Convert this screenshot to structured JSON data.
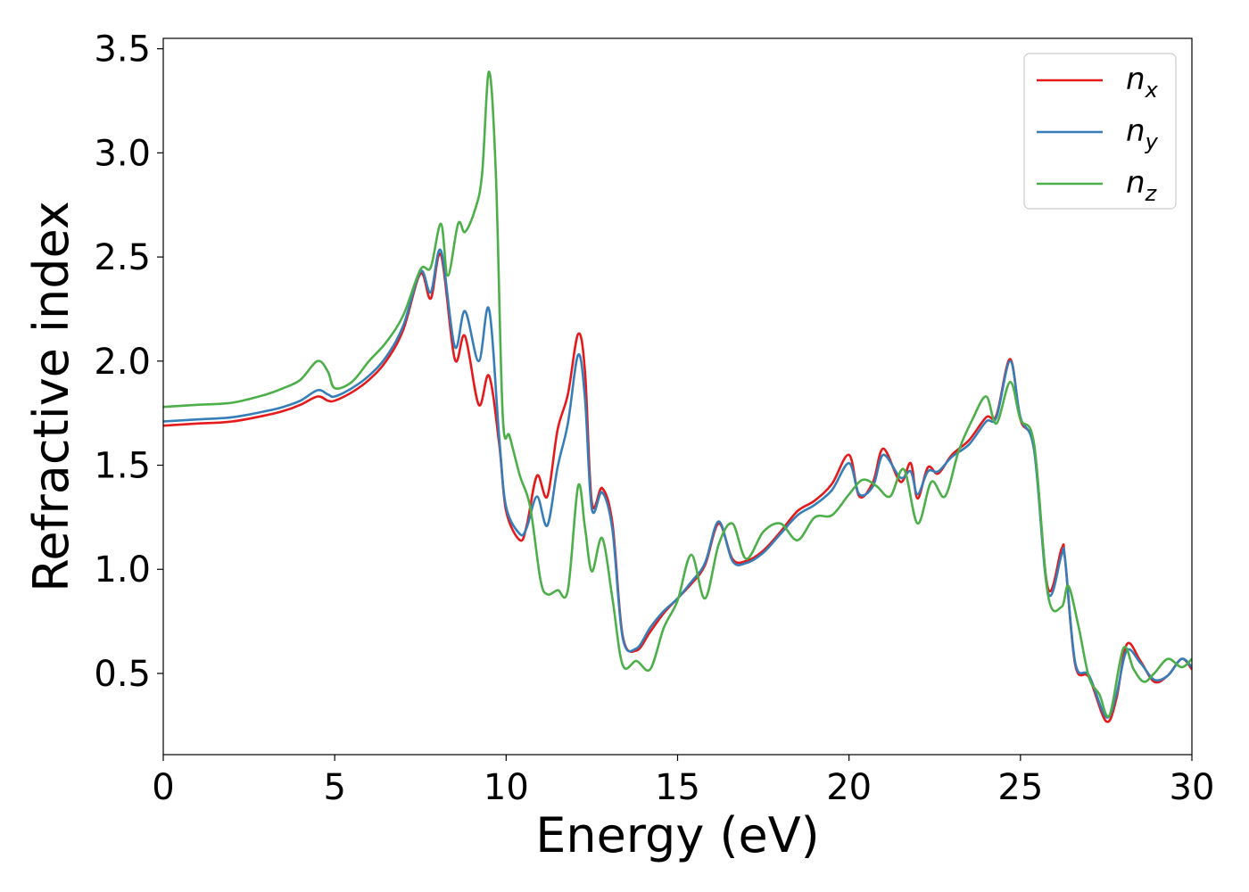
{
  "chart_data": {
    "type": "line",
    "xlabel": "Energy (eV)",
    "ylabel": "Refractive index",
    "xlim": [
      0,
      30
    ],
    "ylim": [
      0.11,
      3.55
    ],
    "xticks": [
      0,
      5,
      10,
      15,
      20,
      25,
      30
    ],
    "yticks": [
      0.5,
      1.0,
      1.5,
      2.0,
      2.5,
      3.0,
      3.5
    ],
    "xtick_labels": [
      "0",
      "5",
      "10",
      "15",
      "20",
      "25",
      "30"
    ],
    "ytick_labels": [
      "0.5",
      "1.0",
      "1.5",
      "2.0",
      "2.5",
      "3.0",
      "3.5"
    ],
    "grid": false,
    "legend_position": "top-right",
    "series": [
      {
        "name": "n_x",
        "label_base": "n",
        "label_sub": "x",
        "color": "#e41a1c",
        "x": [
          0,
          1,
          2,
          3,
          3.5,
          4,
          4.5,
          4.8,
          5,
          5.5,
          6,
          6.5,
          7,
          7.5,
          7.8,
          8.1,
          8.5,
          8.8,
          9.2,
          9.5,
          9.8,
          10,
          10.4,
          10.6,
          10.9,
          11.2,
          11.5,
          11.8,
          12.1,
          12.3,
          12.5,
          12.8,
          13.1,
          13.4,
          13.8,
          14.2,
          14.6,
          15,
          15.4,
          15.8,
          16.2,
          16.6,
          17,
          17.5,
          18,
          18.5,
          19,
          19.5,
          20,
          20.3,
          20.7,
          21,
          21.5,
          21.8,
          22,
          22.3,
          22.6,
          23,
          23.5,
          24,
          24.3,
          24.7,
          25,
          25.4,
          25.8,
          26.2,
          26.3,
          26.6,
          27,
          27.5,
          27.8,
          28.1,
          28.5,
          28.9,
          29.3,
          29.7,
          30
        ],
        "y": [
          1.69,
          1.7,
          1.71,
          1.74,
          1.76,
          1.79,
          1.83,
          1.81,
          1.81,
          1.85,
          1.91,
          2.0,
          2.15,
          2.42,
          2.3,
          2.51,
          2.01,
          2.12,
          1.79,
          1.93,
          1.6,
          1.28,
          1.14,
          1.21,
          1.45,
          1.35,
          1.67,
          1.84,
          2.13,
          1.95,
          1.32,
          1.39,
          1.22,
          0.68,
          0.61,
          0.7,
          0.79,
          0.86,
          0.93,
          1.02,
          1.22,
          1.05,
          1.04,
          1.09,
          1.18,
          1.28,
          1.33,
          1.41,
          1.55,
          1.35,
          1.42,
          1.58,
          1.42,
          1.51,
          1.34,
          1.49,
          1.46,
          1.55,
          1.62,
          1.73,
          1.74,
          2.01,
          1.72,
          1.58,
          0.91,
          1.1,
          1.05,
          0.54,
          0.48,
          0.27,
          0.38,
          0.64,
          0.56,
          0.46,
          0.49,
          0.57,
          0.52
        ]
      },
      {
        "name": "n_y",
        "label_base": "n",
        "label_sub": "y",
        "color": "#377eb8",
        "x": [
          0,
          1,
          2,
          3,
          3.5,
          4,
          4.5,
          4.8,
          5,
          5.5,
          6,
          6.5,
          7,
          7.5,
          7.8,
          8.1,
          8.5,
          8.8,
          9.2,
          9.5,
          9.8,
          10,
          10.4,
          10.6,
          10.9,
          11.2,
          11.5,
          11.8,
          12.1,
          12.3,
          12.5,
          12.8,
          13.1,
          13.4,
          13.8,
          14.2,
          14.6,
          15,
          15.4,
          15.8,
          16.2,
          16.6,
          17,
          17.5,
          18,
          18.5,
          19,
          19.5,
          20,
          20.3,
          20.7,
          21,
          21.5,
          21.8,
          22,
          22.3,
          22.6,
          23,
          23.5,
          24,
          24.3,
          24.7,
          25,
          25.4,
          25.8,
          26.2,
          26.3,
          26.6,
          27,
          27.5,
          27.8,
          28.1,
          28.5,
          28.9,
          29.3,
          29.7,
          30
        ],
        "y": [
          1.71,
          1.72,
          1.73,
          1.76,
          1.78,
          1.81,
          1.86,
          1.84,
          1.83,
          1.87,
          1.93,
          2.02,
          2.17,
          2.43,
          2.33,
          2.53,
          2.07,
          2.24,
          2.0,
          2.25,
          1.63,
          1.3,
          1.17,
          1.2,
          1.35,
          1.21,
          1.49,
          1.7,
          2.03,
          1.82,
          1.29,
          1.37,
          1.19,
          0.67,
          0.62,
          0.72,
          0.8,
          0.86,
          0.94,
          1.03,
          1.23,
          1.04,
          1.03,
          1.08,
          1.17,
          1.26,
          1.31,
          1.38,
          1.51,
          1.36,
          1.4,
          1.55,
          1.44,
          1.47,
          1.36,
          1.47,
          1.47,
          1.54,
          1.6,
          1.71,
          1.73,
          2.0,
          1.73,
          1.57,
          0.89,
          1.07,
          1.05,
          0.55,
          0.49,
          0.29,
          0.4,
          0.61,
          0.55,
          0.47,
          0.49,
          0.57,
          0.53
        ]
      },
      {
        "name": "n_z",
        "label_base": "n",
        "label_sub": "z",
        "color": "#4daf4a",
        "x": [
          0,
          1,
          2,
          3,
          3.5,
          4,
          4.5,
          4.8,
          5,
          5.5,
          6,
          6.5,
          7,
          7.5,
          7.8,
          8.1,
          8.3,
          8.6,
          8.8,
          9.1,
          9.3,
          9.5,
          9.7,
          9.9,
          10.1,
          10.4,
          10.7,
          11,
          11.2,
          11.5,
          11.8,
          12.1,
          12.3,
          12.5,
          12.8,
          13.1,
          13.4,
          13.8,
          14.2,
          14.6,
          15,
          15.4,
          15.8,
          16.2,
          16.6,
          17,
          17.5,
          18,
          18.5,
          19,
          19.5,
          20,
          20.4,
          20.8,
          21.2,
          21.6,
          22,
          22.4,
          22.8,
          23.2,
          23.6,
          24,
          24.3,
          24.7,
          25,
          25.4,
          25.8,
          26.2,
          26.4,
          26.7,
          27,
          27.3,
          27.6,
          28,
          28.3,
          28.6,
          28.9,
          29.3,
          29.7,
          30
        ],
        "y": [
          1.78,
          1.79,
          1.8,
          1.84,
          1.87,
          1.91,
          2.0,
          1.95,
          1.87,
          1.9,
          2.0,
          2.09,
          2.22,
          2.44,
          2.45,
          2.66,
          2.41,
          2.66,
          2.62,
          2.73,
          2.9,
          3.39,
          2.9,
          1.74,
          1.64,
          1.45,
          1.3,
          0.95,
          0.88,
          0.9,
          0.9,
          1.4,
          1.2,
          0.99,
          1.15,
          0.86,
          0.54,
          0.56,
          0.52,
          0.72,
          0.85,
          1.07,
          0.86,
          1.12,
          1.22,
          1.05,
          1.18,
          1.22,
          1.14,
          1.25,
          1.26,
          1.36,
          1.43,
          1.4,
          1.35,
          1.48,
          1.22,
          1.42,
          1.35,
          1.57,
          1.72,
          1.83,
          1.7,
          1.9,
          1.72,
          1.6,
          0.88,
          0.82,
          0.92,
          0.72,
          0.48,
          0.4,
          0.3,
          0.62,
          0.52,
          0.46,
          0.5,
          0.57,
          0.53,
          0.57
        ]
      }
    ]
  }
}
